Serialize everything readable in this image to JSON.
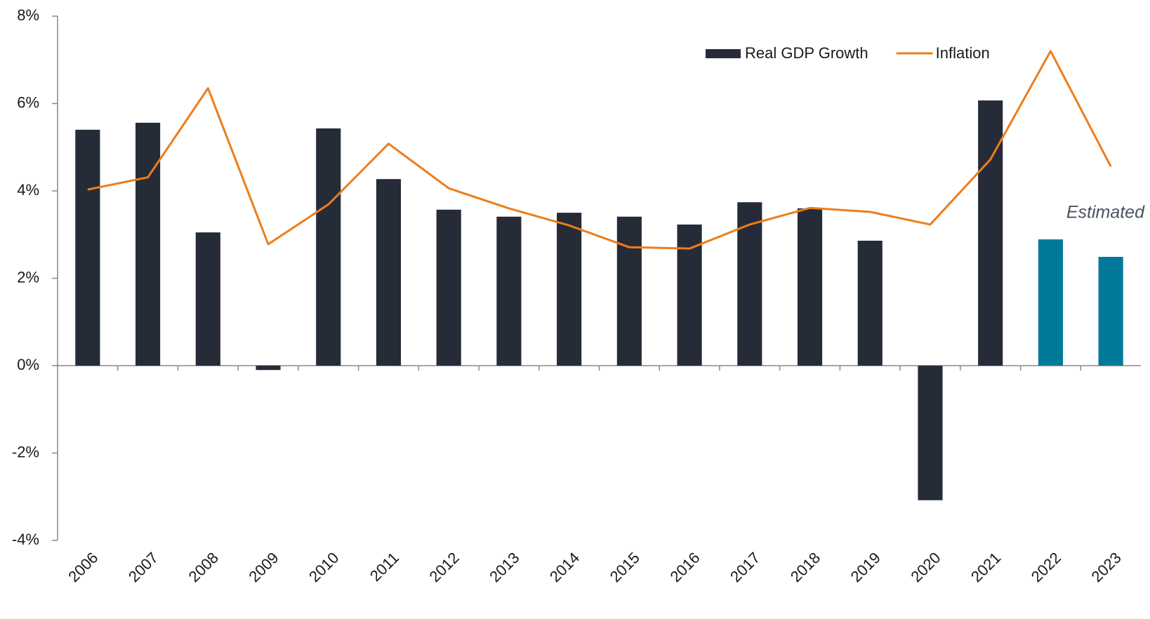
{
  "chart_data": {
    "type": "bar_line",
    "categories": [
      "2006",
      "2007",
      "2008",
      "2009",
      "2010",
      "2011",
      "2012",
      "2013",
      "2014",
      "2015",
      "2016",
      "2017",
      "2018",
      "2019",
      "2020",
      "2021",
      "2022",
      "2023"
    ],
    "series": [
      {
        "name": "Real GDP Growth",
        "type": "bar",
        "color": "#262b38",
        "colors": [
          "#262b38",
          "#262b38",
          "#262b38",
          "#262b38",
          "#262b38",
          "#262b38",
          "#262b38",
          "#262b38",
          "#262b38",
          "#262b38",
          "#262b38",
          "#262b38",
          "#262b38",
          "#262b38",
          "#262b38",
          "#262b38",
          "#00799a",
          "#00799a"
        ],
        "values": [
          5.4,
          5.56,
          3.05,
          -0.1,
          5.43,
          4.27,
          3.57,
          3.41,
          3.5,
          3.41,
          3.23,
          3.74,
          3.6,
          2.86,
          -3.08,
          6.07,
          2.89,
          2.49
        ]
      },
      {
        "name": "Inflation",
        "type": "line",
        "color": "#ed7d1b",
        "values": [
          4.03,
          4.31,
          6.35,
          2.78,
          3.69,
          5.08,
          4.06,
          3.6,
          3.21,
          2.71,
          2.68,
          3.23,
          3.61,
          3.52,
          3.23,
          4.72,
          7.2,
          4.56
        ]
      }
    ],
    "annotations": [
      "Estimated"
    ],
    "ylim": [
      -4,
      8
    ],
    "yticks": [
      {
        "value": -4,
        "label": "-4%"
      },
      {
        "value": -2,
        "label": "-2%"
      },
      {
        "value": 0,
        "label": "0%"
      },
      {
        "value": 2,
        "label": "2%"
      },
      {
        "value": 4,
        "label": "4%"
      },
      {
        "value": 6,
        "label": "6%"
      },
      {
        "value": 8,
        "label": "8%"
      }
    ],
    "legend": "top-right"
  }
}
